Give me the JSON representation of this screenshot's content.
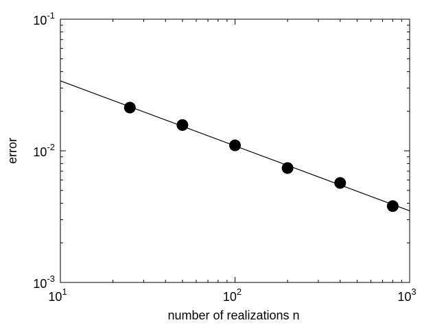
{
  "chart_data": {
    "type": "scatter",
    "xlabel": "number of realizations n",
    "ylabel": "error",
    "xscale": "log",
    "yscale": "log",
    "xlim": [
      10,
      1000
    ],
    "ylim": [
      0.001,
      0.1
    ],
    "grid": false,
    "x_ticks": [
      {
        "value": 10,
        "base": "10",
        "exp": "1"
      },
      {
        "value": 100,
        "base": "10",
        "exp": "2"
      },
      {
        "value": 1000,
        "base": "10",
        "exp": "3"
      }
    ],
    "y_ticks": [
      {
        "value": 0.001,
        "base": "10",
        "exp": "-3"
      },
      {
        "value": 0.01,
        "base": "10",
        "exp": "-2"
      },
      {
        "value": 0.1,
        "base": "10",
        "exp": "-1"
      }
    ],
    "series": [
      {
        "type": "scatter",
        "marker": "filled-circle",
        "color": "#000000",
        "x": [
          25,
          50,
          100,
          200,
          400,
          800
        ],
        "y": [
          0.0213,
          0.0157,
          0.011,
          0.0074,
          0.0057,
          0.0038
        ]
      },
      {
        "type": "line",
        "style": "fit",
        "color": "#000000",
        "x": [
          10,
          1000
        ],
        "y": [
          0.034,
          0.0035
        ]
      }
    ]
  }
}
